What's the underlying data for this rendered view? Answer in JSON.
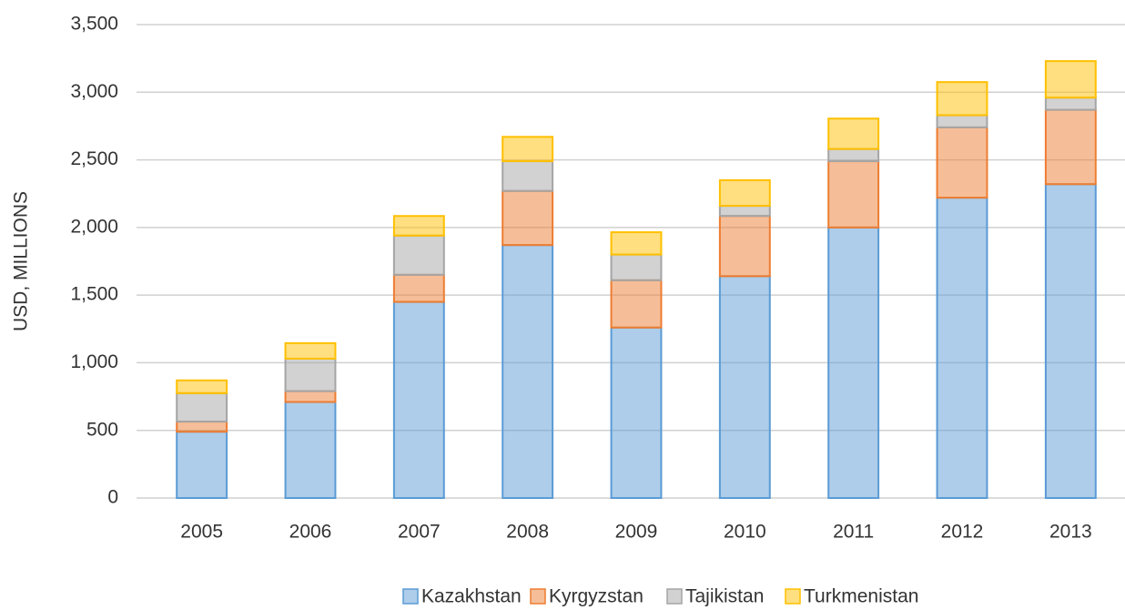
{
  "chart_data": {
    "type": "stacked_bar",
    "y_label": "USD, MILLIONS",
    "categories": [
      "2005",
      "2006",
      "2007",
      "2008",
      "2009",
      "2010",
      "2011",
      "2012",
      "2013"
    ],
    "series": [
      {
        "name": "Kazakhstan",
        "color": "#5b9bd5",
        "values": [
          490,
          710,
          1450,
          1870,
          1260,
          1640,
          2000,
          2220,
          2320
        ]
      },
      {
        "name": "Kyrgyzstan",
        "color": "#ed7d31",
        "values": [
          75,
          80,
          200,
          400,
          350,
          445,
          490,
          520,
          550
        ]
      },
      {
        "name": "Tajikistan",
        "color": "#a5a5a5",
        "values": [
          210,
          240,
          290,
          220,
          190,
          75,
          90,
          90,
          90
        ]
      },
      {
        "name": "Turkmenistan",
        "color": "#ffc000",
        "values": [
          95,
          115,
          145,
          180,
          165,
          190,
          225,
          245,
          270
        ]
      }
    ],
    "ylim": [
      0,
      3500
    ],
    "yticks": [
      0,
      500,
      {
        "value": 1000,
        "label": "1,000"
      },
      {
        "value": 1500,
        "label": "1,500"
      },
      {
        "value": 2000,
        "label": "2,000"
      },
      {
        "value": 2500,
        "label": "2,500"
      },
      {
        "value": 3000,
        "label": "3,000"
      },
      {
        "value": 3500,
        "label": "3,500"
      }
    ],
    "grid": true,
    "legend": "bottom"
  }
}
